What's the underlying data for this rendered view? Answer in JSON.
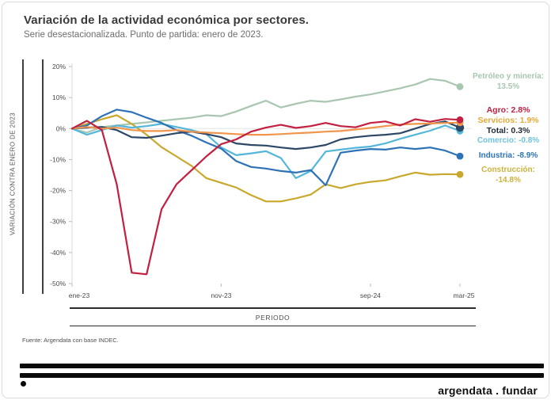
{
  "header": {
    "title": "Variación de la actividad económica por sectores.",
    "subtitle": "Serie desestacionalizada. Punto de partida: enero de 2023."
  },
  "chart_data": {
    "type": "line",
    "title": "Variación de la actividad económica por sectores.",
    "subtitle": "Serie desestacionalizada. Punto de partida: enero de 2023.",
    "xlabel": "PERIODO",
    "ylabel": "VARIACIÓN CONTRA ENERO DE 2023",
    "ylim": [
      -50,
      20
    ],
    "grid": "zero-line-only",
    "legend_position": "right",
    "n_points": 27,
    "x_start": "ene-23",
    "x_end": "mar-25",
    "x_frequency": "monthly",
    "yticks": [
      {
        "value": 20,
        "label": "20%"
      },
      {
        "value": 10,
        "label": "10%"
      },
      {
        "value": 0,
        "label": "0%"
      },
      {
        "value": -10,
        "label": "-10%"
      },
      {
        "value": -20,
        "label": "-20%"
      },
      {
        "value": -30,
        "label": "-30%"
      },
      {
        "value": -40,
        "label": "-40%"
      },
      {
        "value": -50,
        "label": "-50%"
      }
    ],
    "x_tick_labels": [
      {
        "month_index": 0,
        "label": "ene-23"
      },
      {
        "month_index": 10,
        "label": "nov-23"
      },
      {
        "month_index": 20,
        "label": "sep-24"
      },
      {
        "month_index": 26,
        "label": "mar-25"
      }
    ],
    "series": [
      {
        "id": "petroleo",
        "name": "Petróleo y minería",
        "final_value_pct": 13.5,
        "color": "#A9C6B0",
        "legend_color": "#A9C6B0",
        "legend_bold": false,
        "legend_lines": [
          "Petróleo y minería:",
          "13.5%"
        ],
        "values": [
          0,
          -1.3,
          0.5,
          1,
          1.5,
          2,
          2.5,
          3,
          3.5,
          4.3,
          4,
          5.5,
          7.3,
          9,
          6.8,
          8,
          9,
          8.6,
          9.4,
          10.3,
          11,
          12,
          13,
          14.2,
          16,
          15.4,
          13.5
        ]
      },
      {
        "id": "agro",
        "name": "Agro",
        "final_value_pct": 2.8,
        "color": "#C31F41",
        "legend_color": "#C31F41",
        "legend_bold": true,
        "legend_lines": [
          "Agro: 2.8%"
        ],
        "values": [
          0,
          2.5,
          -0.5,
          -18,
          -46.5,
          -47,
          -26,
          -18,
          -13.5,
          -9,
          -5,
          -3.5,
          -1,
          0.3,
          1.2,
          0.2,
          0.8,
          1.8,
          0.8,
          0.4,
          1.8,
          2.3,
          1,
          3,
          2.2,
          3.1,
          2.8
        ]
      },
      {
        "id": "servicios",
        "name": "Servicios",
        "final_value_pct": 1.9,
        "color": "#F0954B",
        "legend_color": "#E8A838",
        "legend_bold": true,
        "legend_lines": [
          "Servicios: 1.9%"
        ],
        "values": [
          0,
          0.5,
          0,
          0.3,
          -0.5,
          -0.8,
          -0.8,
          -0.5,
          -1,
          -1.3,
          -1.5,
          -1.8,
          -2,
          -2,
          -1.8,
          -1.5,
          -1.3,
          -1,
          -0.8,
          -0.3,
          0.2,
          0.8,
          1.3,
          1.5,
          1.6,
          1.8,
          1.9
        ]
      },
      {
        "id": "total",
        "name": "Total",
        "final_value_pct": 0.3,
        "color": "#2C4866",
        "legend_color": "#1E2936",
        "legend_bold": true,
        "legend_lines": [
          "Total: 0.3%"
        ],
        "values": [
          0,
          0.3,
          0.5,
          -0.5,
          -2.8,
          -3,
          -2.3,
          -1.5,
          -1,
          -1.8,
          -2.8,
          -4.8,
          -5.3,
          -5.5,
          -6.1,
          -6.6,
          -6.1,
          -5.3,
          -3.5,
          -2.8,
          -2.3,
          -2,
          -1.5,
          0,
          1.5,
          2.3,
          0.3
        ]
      },
      {
        "id": "comercio",
        "name": "Comercio",
        "final_value_pct": -0.8,
        "color": "#54B7DA",
        "legend_color": "#70C2DE",
        "legend_bold": false,
        "legend_lines": [
          "Comercio: -0.8%"
        ],
        "values": [
          0,
          -2,
          -0.5,
          1,
          0.3,
          0.8,
          1.5,
          0.5,
          -0.5,
          -1.8,
          -6.1,
          -8.6,
          -8,
          -7.3,
          -9.5,
          -16,
          -13.7,
          -7.4,
          -6.8,
          -6.2,
          -5.8,
          -4.8,
          -3.3,
          -2,
          -0.7,
          1,
          -0.8
        ]
      },
      {
        "id": "industria",
        "name": "Industria",
        "final_value_pct": -8.9,
        "color": "#2D72B7",
        "legend_color": "#2D72B7",
        "legend_bold": false,
        "legend_lines": [
          "Industria: -8.9%"
        ],
        "values": [
          0,
          1,
          4,
          6.1,
          5.3,
          3.5,
          1.8,
          -0.5,
          -2.3,
          -4.5,
          -6.5,
          -10.5,
          -12.4,
          -12.9,
          -13.7,
          -14.2,
          -13.4,
          -18.3,
          -7.8,
          -7.1,
          -6.6,
          -6.8,
          -6.1,
          -6.6,
          -6.1,
          -7.1,
          -8.9
        ]
      },
      {
        "id": "construccion",
        "name": "Construcción",
        "final_value_pct": -14.8,
        "color": "#C8A92D",
        "legend_color": "#CBB23E",
        "legend_bold": false,
        "legend_lines": [
          "Construcción:",
          "-14.8%"
        ],
        "values": [
          0,
          1.5,
          3,
          4.3,
          1.5,
          -2,
          -6,
          -9,
          -12,
          -16,
          -17.5,
          -19,
          -21.5,
          -23.5,
          -23.5,
          -22.5,
          -21.3,
          -18,
          -19.2,
          -18,
          -17.2,
          -16.7,
          -15.4,
          -14.2,
          -14.9,
          -14.7,
          -14.8
        ]
      }
    ]
  },
  "footer": {
    "source": "Fuente: Argendata con base INDEC.",
    "logo": "argendata . fundar"
  }
}
